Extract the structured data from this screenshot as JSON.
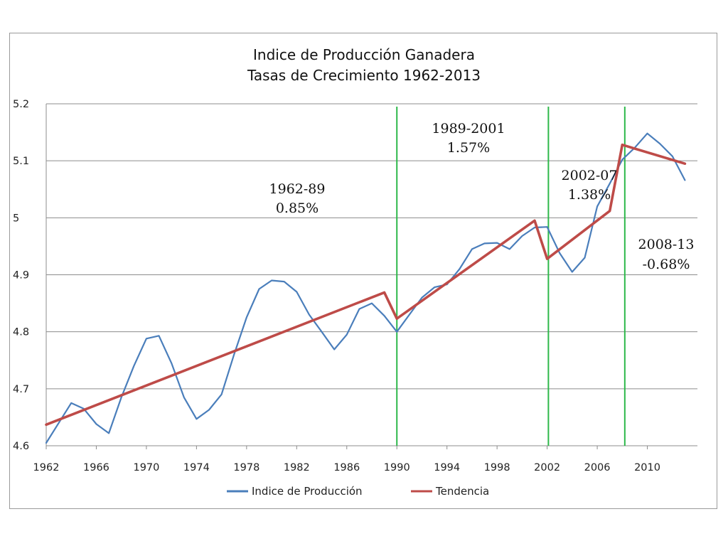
{
  "chart_data": {
    "type": "line",
    "title": "Indice de Producción Ganadera",
    "subtitle": "Tasas de Crecimiento 1962-2013",
    "xlabel": "",
    "ylabel": "",
    "xlim": [
      1962,
      2014
    ],
    "ylim": [
      4.6,
      5.2
    ],
    "x_ticks": [
      "1962",
      "1966",
      "1970",
      "1974",
      "1978",
      "1982",
      "1986",
      "1990",
      "1994",
      "1998",
      "2002",
      "2006",
      "2010"
    ],
    "y_ticks": [
      "4.6",
      "4.7",
      "4.8",
      "4.9",
      "5",
      "5.1",
      "5.2"
    ],
    "grid": "horizontal",
    "legend_position": "bottom",
    "series": [
      {
        "name": "Indice de Producción",
        "color": "#4a7ebb",
        "x": [
          1962,
          1963,
          1964,
          1965,
          1966,
          1967,
          1968,
          1969,
          1970,
          1971,
          1972,
          1973,
          1974,
          1975,
          1976,
          1977,
          1978,
          1979,
          1980,
          1981,
          1982,
          1983,
          1984,
          1985,
          1986,
          1987,
          1988,
          1989,
          1990,
          1991,
          1992,
          1993,
          1994,
          1995,
          1996,
          1997,
          1998,
          1999,
          2000,
          2001,
          2002,
          2003,
          2004,
          2005,
          2006,
          2007,
          2008,
          2009,
          2010,
          2011,
          2012,
          2013
        ],
        "values": [
          4.605,
          4.64,
          4.675,
          4.665,
          4.638,
          4.622,
          4.685,
          4.74,
          4.788,
          4.793,
          4.745,
          4.685,
          4.647,
          4.663,
          4.69,
          4.76,
          4.825,
          4.875,
          4.89,
          4.888,
          4.87,
          4.83,
          4.8,
          4.769,
          4.795,
          4.84,
          4.85,
          4.828,
          4.8,
          4.83,
          4.86,
          4.878,
          4.883,
          4.91,
          4.945,
          4.955,
          4.956,
          4.945,
          4.968,
          4.983,
          4.984,
          4.938,
          4.905,
          4.93,
          5.02,
          5.06,
          5.102,
          5.123,
          5.148,
          5.13,
          5.108,
          5.066
        ]
      },
      {
        "name": "Tendencia",
        "color": "#be4b48",
        "x": [
          1962,
          1989,
          1990,
          2001,
          2002,
          2007,
          2008,
          2013
        ],
        "values": [
          4.637,
          4.869,
          4.823,
          4.995,
          4.928,
          5.012,
          5.128,
          5.095
        ]
      }
    ],
    "annotations": [
      {
        "period": "1962-89",
        "rate": "0.85%"
      },
      {
        "period": "1989-2001",
        "rate": "1.57%"
      },
      {
        "period": "2002-07",
        "rate": "1.38%"
      },
      {
        "period": "2008-13",
        "rate": "-0.68%"
      }
    ],
    "vertical_markers": [
      {
        "x": 1990.0,
        "color": "#2db84a"
      },
      {
        "x": 2002.1,
        "color": "#2db84a"
      },
      {
        "x": 2008.2,
        "color": "#2db84a"
      }
    ]
  }
}
